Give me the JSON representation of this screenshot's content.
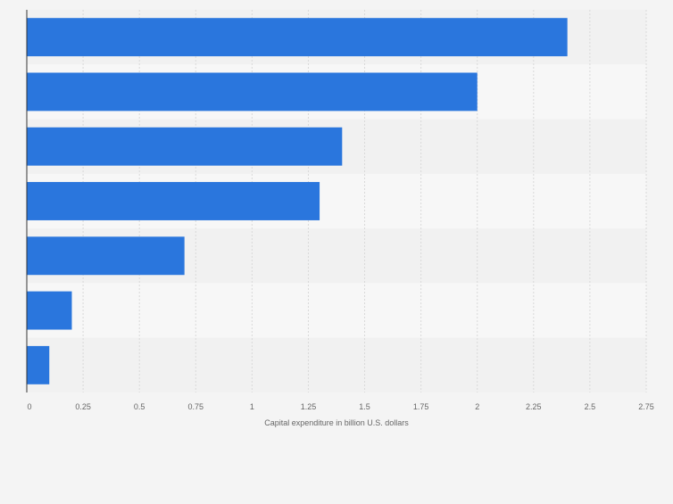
{
  "chart_data": {
    "type": "bar",
    "orientation": "horizontal",
    "categories": [
      "",
      "",
      "",
      "",
      "",
      "",
      ""
    ],
    "values": [
      2.4,
      2.0,
      1.4,
      1.3,
      0.7,
      0.2,
      0.1
    ],
    "x_ticks": [
      "0",
      "0.25",
      "0.5",
      "0.75",
      "1",
      "1.25",
      "1.5",
      "1.75",
      "2",
      "2.25",
      "2.5",
      "2.75"
    ],
    "xlabel": "Capital expenditure in billion U.S. dollars",
    "xlim": [
      0,
      2.75
    ],
    "grid": "vertical",
    "colors": {
      "bar": "#2a76dd",
      "band_light": "#f7f7f7",
      "band_dark": "#f1f1f1",
      "gridline": "#d9d9d9",
      "axis": "#333333",
      "text": "#666666"
    }
  }
}
